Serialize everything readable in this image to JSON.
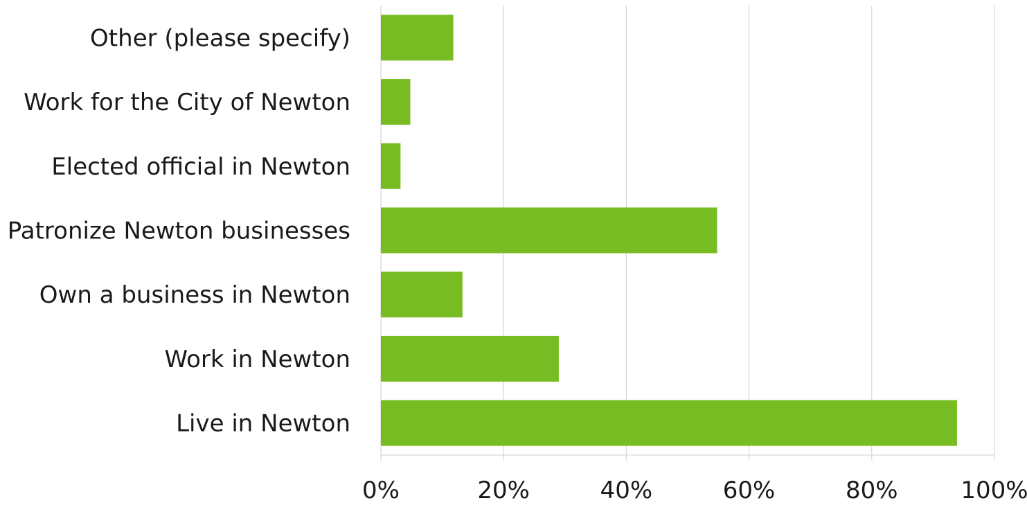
{
  "chart_data": {
    "type": "bar",
    "orientation": "horizontal",
    "title": "",
    "xlabel": "",
    "ylabel": "",
    "categories": [
      "Other (please specify)",
      "Work for the City of Newton",
      "Elected official in Newton",
      "Patronize Newton businesses",
      "Own a business in Newton",
      "Work in Newton",
      "Live in Newton"
    ],
    "series": [
      {
        "values": [
          11.8,
          4.8,
          3.2,
          54.8,
          13.3,
          29.0,
          93.9
        ],
        "color": "#77bc22"
      }
    ],
    "xlim": [
      0,
      100
    ],
    "x_ticks": [
      0,
      20,
      40,
      60,
      80,
      100
    ],
    "x_tick_labels": [
      "0%",
      "20%",
      "40%",
      "60%",
      "80%",
      "100%"
    ],
    "grid": "vertical",
    "legend": "none"
  }
}
